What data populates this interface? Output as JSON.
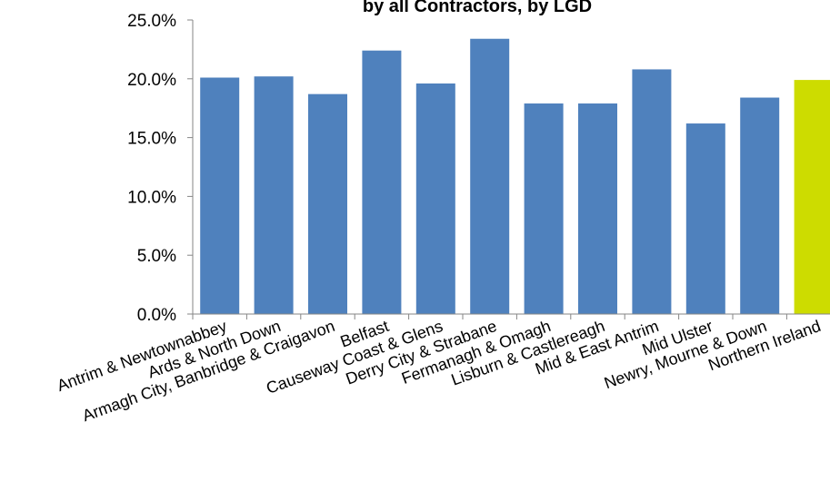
{
  "chart_data": {
    "type": "bar",
    "title": "by all Contractors, by LGD",
    "xlabel": "",
    "ylabel": "",
    "categories": [
      "Antrim & Newtownabbey",
      "Ards & North Down",
      "Armagh City, Banbridge & Craigavon",
      "Belfast",
      "Causeway Coast & Glens",
      "Derry City & Strabane",
      "Fermanagh & Omagh",
      "Lisburn & Castlereagh",
      "Mid & East Antrim",
      "Mid Ulster",
      "Newry, Mourne & Down",
      "Northern Ireland"
    ],
    "values": [
      20.1,
      20.2,
      18.7,
      22.4,
      19.6,
      23.4,
      17.9,
      17.9,
      20.8,
      16.2,
      18.4,
      19.9
    ],
    "ylim": [
      0,
      25
    ],
    "yticks": [
      "0.0%",
      "5.0%",
      "10.0%",
      "15.0%",
      "20.0%",
      "25.0%"
    ],
    "colors": {
      "bar": "#4f81bd",
      "highlight": "#cddc00",
      "axis": "#868686"
    },
    "highlight_index": 11,
    "grid": false,
    "legend": "none"
  }
}
